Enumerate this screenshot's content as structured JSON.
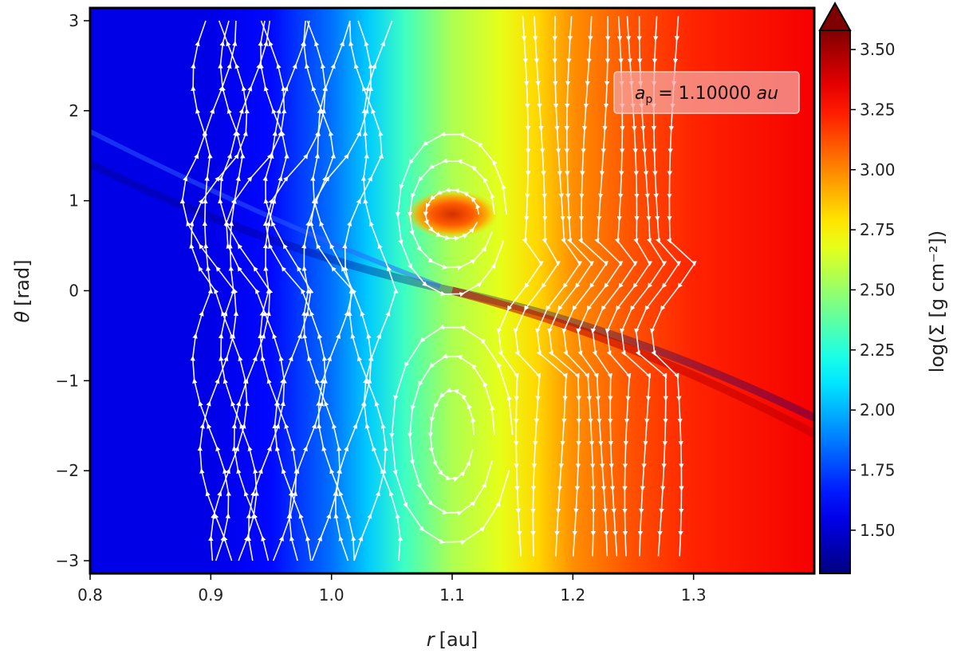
{
  "chart_data": {
    "type": "heatmap",
    "xlabel_var": "r",
    "xlabel_unit": "[au]",
    "ylabel_var": "θ",
    "ylabel_unit": "[rad]",
    "xlim": [
      0.8,
      1.4
    ],
    "ylim": [
      -3.14159,
      3.14159
    ],
    "x_ticks": [
      0.8,
      0.9,
      1.0,
      1.1,
      1.2,
      1.3
    ],
    "x_tick_labels": [
      "0.8",
      "0.9",
      "1.0",
      "1.1",
      "1.2",
      "1.3"
    ],
    "y_ticks": [
      3,
      2,
      1,
      0,
      -1,
      -2,
      -3
    ],
    "y_tick_labels": [
      "3",
      "2",
      "1",
      "0",
      "−1",
      "−2",
      "−3"
    ],
    "colorbar": {
      "label": "log(Σ [g cm⁻²])",
      "range": [
        1.32,
        3.58
      ],
      "extend": "max",
      "ticks": [
        3.5,
        3.25,
        3.0,
        2.75,
        2.5,
        2.25,
        2.0,
        1.75,
        1.5
      ],
      "tick_labels": [
        "3.50",
        "3.25",
        "3.00",
        "2.75",
        "2.50",
        "2.25",
        "2.00",
        "1.75",
        "1.50"
      ],
      "colormap": "jet"
    },
    "annotation": {
      "text_symbol": "a",
      "text_sub": "p",
      "text_value": " = 1.10000 ",
      "text_unit": "au",
      "box_color": "#f5a6a0"
    },
    "planet": {
      "r": 1.1,
      "theta": 0.0
    },
    "overdensity_center": {
      "r": 1.1,
      "theta": 0.85,
      "log_sigma": 3.3
    },
    "gap_density": 1.55,
    "outer_density": 3.3,
    "streamline_color": "#ffffff"
  }
}
